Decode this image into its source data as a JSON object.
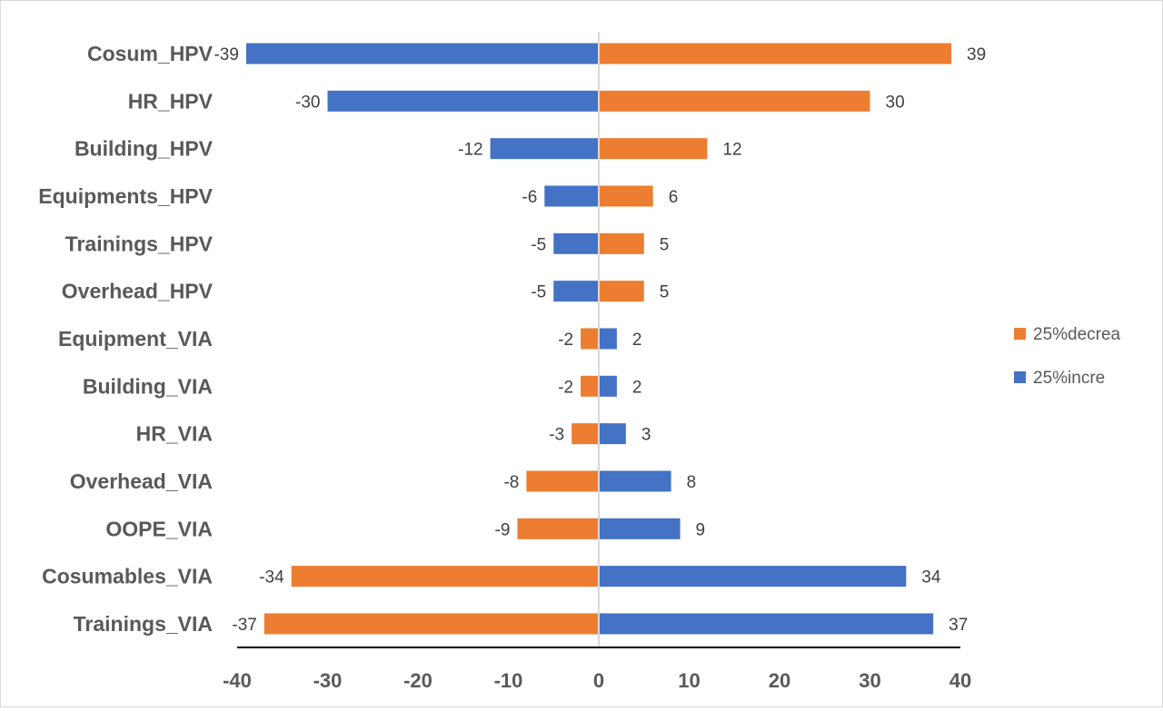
{
  "chart_data": {
    "type": "bar",
    "orientation": "horizontal",
    "title": "",
    "xlabel": "",
    "ylabel": "",
    "xlim": [
      -40,
      40
    ],
    "xticks": [
      -40,
      -30,
      -20,
      -10,
      0,
      10,
      20,
      30,
      40
    ],
    "grid": false,
    "legend_position": "right",
    "categories": [
      "Cosum_HPV",
      "HR_HPV",
      "Building_HPV",
      "Equipments_HPV",
      "Trainings_HPV",
      "Overhead_HPV",
      "Equipment_VIA",
      "Building_VIA",
      "HR_VIA",
      "Overhead_VIA",
      "OOPE_VIA",
      "Cosumables_VIA",
      "Trainings_VIA"
    ],
    "series": [
      {
        "name": "25%decrea",
        "color": "#ED7D31",
        "values": [
          39,
          30,
          12,
          6,
          5,
          5,
          -2,
          -2,
          -3,
          -8,
          -9,
          -34,
          -37
        ]
      },
      {
        "name": "25%incre",
        "color": "#4472C4",
        "values": [
          -39,
          -30,
          -12,
          -6,
          -5,
          -5,
          2,
          2,
          3,
          8,
          9,
          34,
          37
        ]
      }
    ],
    "data_labels": {
      "left": [
        "-39",
        "-30",
        "-12",
        "-6",
        "-5",
        "-5",
        "-2",
        "-2",
        "-3",
        "-8",
        "-9",
        "-34",
        "-37"
      ],
      "right": [
        "39",
        "30",
        "12",
        "6",
        "5",
        "5",
        "2",
        "2",
        "3",
        "8",
        "9",
        "34",
        "37"
      ]
    }
  }
}
